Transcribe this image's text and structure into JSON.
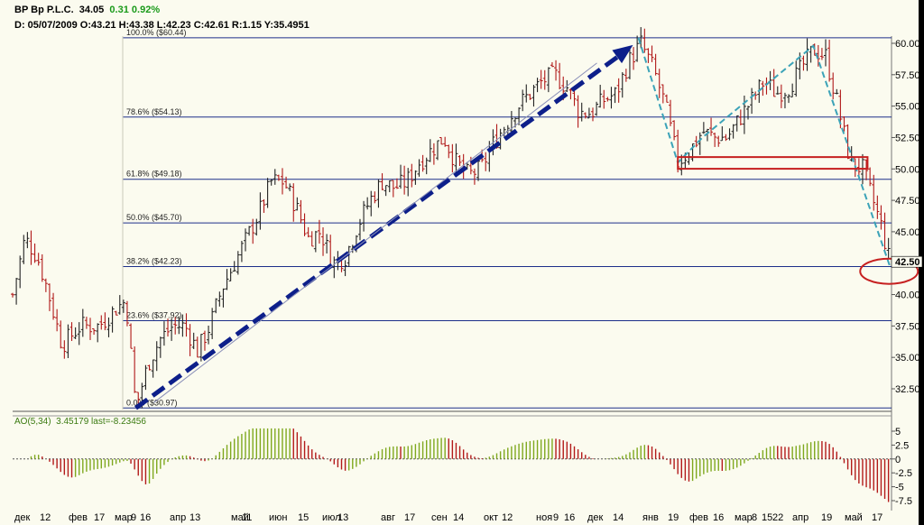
{
  "header": {
    "symbol": "BP",
    "name": "Bp P.L.C.",
    "last": "34.05",
    "change": "0.31",
    "change_pct": "0.92%",
    "ohlc": "D: 05/07/2009 O:43.21 H:43.38 L:42.23 C:42.61 R:1.15 Y:35.4951"
  },
  "colors": {
    "background": "#fbfbef",
    "fib_lines": "#1c2f8a",
    "up_bar": "#222222",
    "down_bar": "#b01818",
    "trend_arrow": "#0d1f8a",
    "wave_dash": "#3ca3b8",
    "support_box": "#c62020",
    "ao_up": "#7fa81e",
    "ao_down": "#b31a1a",
    "change_up": "#1a9a1a"
  },
  "chart_data": [
    {
      "type": "ohlc",
      "symbol": "BP",
      "ylim": [
        30.0,
        61.0
      ],
      "y_ticks": [
        "60.00",
        "57.50",
        "55.00",
        "52.50",
        "50.00",
        "47.50",
        "45.00",
        "42.50",
        "40.00",
        "37.50",
        "35.00",
        "32.50"
      ],
      "x_tick_labels": [
        "дек",
        "12",
        "фев",
        "17",
        "мар",
        "9",
        "16",
        "апр",
        "13",
        "май",
        "11",
        "июн",
        "15",
        "июл",
        "13",
        "авг",
        "17",
        "сен",
        "14",
        "окт",
        "12",
        "ноя",
        "9",
        "16",
        "дек",
        "14",
        "янв",
        "19",
        "фев",
        "16",
        "мар",
        "8",
        "15",
        "22",
        "апр",
        "19",
        "май",
        "17"
      ],
      "fibonacci_levels": [
        {
          "label": "100.0% ($60.44)",
          "value": 60.44
        },
        {
          "label": "78.6% ($54.13)",
          "value": 54.13
        },
        {
          "label": "61.8% ($49.18)",
          "value": 49.18
        },
        {
          "label": "50.0% ($45.70)",
          "value": 45.7
        },
        {
          "label": "38.2% ($42.23)",
          "value": 42.23
        },
        {
          "label": "23.6% ($37.92)",
          "value": 37.92
        },
        {
          "label": "0.0% ($30.97)",
          "value": 30.97
        }
      ],
      "series": [
        {
          "anchors": [
            [
              0,
              40.0
            ],
            [
              10,
              44.5
            ],
            [
              20,
              43.0
            ],
            [
              28,
              40.5
            ],
            [
              40,
              36.0
            ],
            [
              55,
              37.5
            ],
            [
              70,
              37.5
            ],
            [
              85,
              39.0
            ],
            [
              92,
              39.5
            ],
            [
              100,
              31.0
            ],
            [
              110,
              34.5
            ],
            [
              120,
              36.5
            ],
            [
              130,
              37.5
            ],
            [
              140,
              37.5
            ],
            [
              150,
              35.5
            ],
            [
              160,
              37.5
            ],
            [
              170,
              40.5
            ],
            [
              180,
              42.5
            ],
            [
              190,
              44.5
            ],
            [
              200,
              46.5
            ],
            [
              210,
              49.0
            ],
            [
              220,
              49.0
            ],
            [
              230,
              47.0
            ],
            [
              240,
              44.5
            ],
            [
              250,
              45.0
            ],
            [
              260,
              42.5
            ],
            [
              270,
              43.0
            ],
            [
              280,
              45.5
            ],
            [
              290,
              47.5
            ],
            [
              300,
              49.0
            ],
            [
              310,
              48.5
            ],
            [
              320,
              49.0
            ],
            [
              330,
              50.5
            ],
            [
              340,
              51.5
            ],
            [
              350,
              52.5
            ],
            [
              360,
              50.5
            ],
            [
              370,
              49.5
            ],
            [
              380,
              50.0
            ],
            [
              390,
              52.0
            ],
            [
              400,
              53.5
            ],
            [
              410,
              55.0
            ],
            [
              420,
              56.0
            ],
            [
              430,
              57.0
            ],
            [
              440,
              57.5
            ],
            [
              450,
              56.5
            ],
            [
              460,
              54.5
            ],
            [
              470,
              54.5
            ],
            [
              480,
              55.5
            ],
            [
              490,
              56.0
            ],
            [
              500,
              58.5
            ],
            [
              510,
              60.0
            ],
            [
              520,
              58.0
            ],
            [
              530,
              55.0
            ],
            [
              540,
              50.5
            ],
            [
              550,
              51.5
            ],
            [
              560,
              53.0
            ],
            [
              570,
              52.5
            ],
            [
              580,
              52.5
            ],
            [
              590,
              54.0
            ],
            [
              600,
              55.5
            ],
            [
              610,
              57.0
            ],
            [
              620,
              56.0
            ],
            [
              630,
              56.5
            ],
            [
              640,
              58.0
            ],
            [
              650,
              59.5
            ],
            [
              660,
              59.0
            ],
            [
              670,
              55.0
            ],
            [
              680,
              50.5
            ],
            [
              690,
              50.0
            ],
            [
              700,
              47.0
            ],
            [
              705,
              45.5
            ],
            [
              712,
              42.6
            ]
          ]
        }
      ],
      "annotations": [
        {
          "kind": "trend-arrow",
          "from": [
            100,
            30.97
          ],
          "to": [
            508,
            60.44
          ]
        },
        {
          "kind": "zigzag",
          "points": [
            [
              508,
              60.44
            ],
            [
              540,
              50.5
            ],
            [
              560,
              52.5
            ],
            [
              650,
              59.8
            ],
            [
              712,
              42.3
            ]
          ]
        },
        {
          "kind": "support-box",
          "x_from": 540,
          "x_to": 694,
          "y_from": 50.3,
          "y_to": 50.8
        },
        {
          "kind": "circle",
          "center": [
            710,
            42.0
          ]
        }
      ]
    },
    {
      "type": "bar",
      "title": "AO(5,34)",
      "value_text": "3.45179",
      "last_text": "last=-8.23456",
      "ylim": [
        -8.5,
        5.5
      ],
      "y_ticks": [
        "5",
        "2.5",
        "0",
        "-2.5",
        "-5",
        "-7.5"
      ]
    }
  ]
}
